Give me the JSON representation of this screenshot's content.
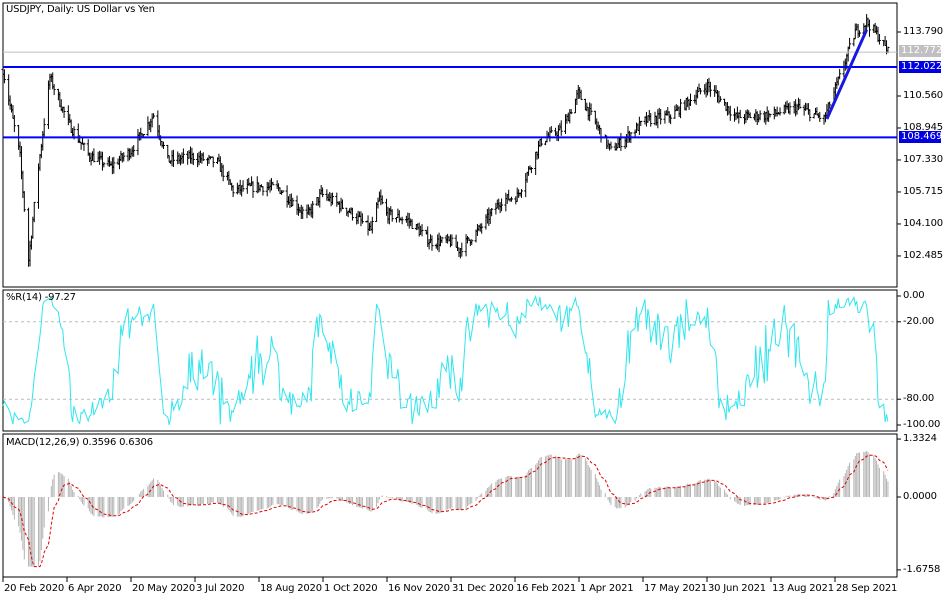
{
  "title": "USDJPY, Daily:  US Dollar vs Yen",
  "wpr_label": "%R(14) -97.27",
  "macd_label": "MACD(12,26,9) 0.3596 0.6306",
  "colors": {
    "levels": "#0000ff",
    "trendline": "#1818e0",
    "wpr": "#2ee6ee",
    "macd_hist": "#b4b4b4",
    "macd_signal": "#e00000",
    "current_price_tag": "#c0c0c0"
  },
  "chart_data": [
    {
      "type": "ohlc",
      "title": "USDJPY, Daily:  US Dollar vs Yen",
      "y_ticks": [
        "113.790",
        "110.560",
        "108.945",
        "107.330",
        "105.715",
        "104.100",
        "102.485"
      ],
      "x_ticks": [
        "20 Feb 2020",
        "6 Apr 2020",
        "20 May 2020",
        "3 Jul 2020",
        "18 Aug 2020",
        "1 Oct 2020",
        "16 Nov 2020",
        "31 Dec 2020",
        "16 Feb 2021",
        "1 Apr 2021",
        "17 May 2021",
        "30 Jun 2021",
        "13 Aug 2021",
        "28 Sep 2021"
      ],
      "ylim": [
        100.9,
        115.1
      ],
      "current_price": "112.772",
      "horizontal_levels": [
        "112.022",
        "108.469"
      ],
      "trendline": {
        "from": {
          "date": "2021-09-22",
          "price": 109.4
        },
        "to": {
          "date": "2021-10-20",
          "price": 113.9
        }
      },
      "approx_close_path": [
        [
          "2020-02-20",
          111.9
        ],
        [
          "2020-03-03",
          107.5
        ],
        [
          "2020-03-09",
          102.3
        ],
        [
          "2020-03-16",
          107.0
        ],
        [
          "2020-03-24",
          111.5
        ],
        [
          "2020-04-06",
          109.2
        ],
        [
          "2020-04-20",
          107.6
        ],
        [
          "2020-05-06",
          107.0
        ],
        [
          "2020-05-20",
          107.8
        ],
        [
          "2020-06-05",
          109.6
        ],
        [
          "2020-06-15",
          107.3
        ],
        [
          "2020-07-03",
          107.5
        ],
        [
          "2020-07-20",
          107.2
        ],
        [
          "2020-07-31",
          105.8
        ],
        [
          "2020-08-18",
          106.0
        ],
        [
          "2020-09-01",
          105.9
        ],
        [
          "2020-09-21",
          104.5
        ],
        [
          "2020-10-01",
          105.6
        ],
        [
          "2020-10-20",
          104.8
        ],
        [
          "2020-11-05",
          103.8
        ],
        [
          "2020-11-11",
          105.4
        ],
        [
          "2020-11-16",
          104.6
        ],
        [
          "2020-12-01",
          104.3
        ],
        [
          "2020-12-17",
          103.2
        ],
        [
          "2020-12-31",
          103.2
        ],
        [
          "2021-01-06",
          102.8
        ],
        [
          "2021-01-20",
          103.8
        ],
        [
          "2021-02-05",
          105.3
        ],
        [
          "2021-02-16",
          105.5
        ],
        [
          "2021-03-05",
          108.3
        ],
        [
          "2021-03-20",
          108.9
        ],
        [
          "2021-03-31",
          110.7
        ],
        [
          "2021-04-23",
          107.8
        ],
        [
          "2021-05-17",
          109.3
        ],
        [
          "2021-06-05",
          109.6
        ],
        [
          "2021-06-30",
          111.1
        ],
        [
          "2021-07-20",
          109.5
        ],
        [
          "2021-08-13",
          109.6
        ],
        [
          "2021-09-01",
          110.0
        ],
        [
          "2021-09-20",
          109.4
        ],
        [
          "2021-10-01",
          111.5
        ],
        [
          "2021-10-12",
          113.8
        ],
        [
          "2021-10-20",
          114.3
        ],
        [
          "2021-10-28",
          113.6
        ],
        [
          "2021-11-04",
          112.8
        ]
      ]
    },
    {
      "type": "line",
      "title": "%R(14) -97.27",
      "y_ticks": [
        "0.00",
        "-20.00",
        "-80.00",
        "-100.00"
      ],
      "ylim": [
        -100,
        0
      ],
      "levels": [
        -20,
        -80
      ],
      "last_value": -97.27
    },
    {
      "type": "bar",
      "title": "MACD(12,26,9) 0.3596 0.6306",
      "y_ticks": [
        "1.3324",
        "0.0000",
        "-1.6758"
      ],
      "ylim": [
        -1.6758,
        1.3324
      ],
      "macd": 0.3596,
      "signal": 0.6306
    }
  ]
}
